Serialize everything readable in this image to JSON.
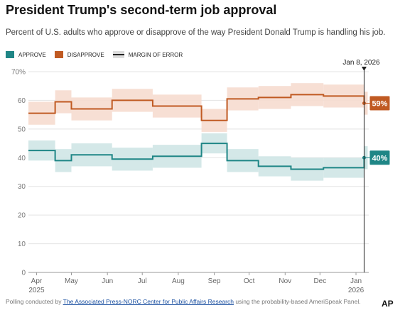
{
  "header": {
    "title": "President Trump's second-term job approval",
    "subtitle": "Percent of U.S. adults who approve or disapprove of the way President Donald Trump is handling his job."
  },
  "legend": {
    "approve": "APPROVE",
    "disapprove": "DISAPPROVE",
    "margin_of_error": "MARGIN OF ERROR"
  },
  "colors": {
    "approve": "#1f8686",
    "approve_band": "#cfe6e5",
    "disapprove": "#c05a22",
    "disapprove_band": "#f6dccf",
    "gridline": "#e3e3e3",
    "marker": "#222222"
  },
  "chart_data": {
    "type": "line",
    "xlabel": "",
    "ylabel": "",
    "ylim": [
      0,
      70
    ],
    "yticks": [
      0,
      10,
      20,
      30,
      40,
      50,
      60,
      70
    ],
    "ytick_labels": [
      "0",
      "10",
      "20",
      "30",
      "40",
      "50",
      "60",
      "70%"
    ],
    "xlim": [
      "2025-03-25",
      "2026-01-12"
    ],
    "xticks": [
      {
        "date": "2025-04-01",
        "label": "Apr",
        "year": "2025"
      },
      {
        "date": "2025-05-01",
        "label": "May",
        "year": ""
      },
      {
        "date": "2025-06-01",
        "label": "Jun",
        "year": ""
      },
      {
        "date": "2025-07-01",
        "label": "Jul",
        "year": ""
      },
      {
        "date": "2025-08-01",
        "label": "Aug",
        "year": ""
      },
      {
        "date": "2025-09-01",
        "label": "Sep",
        "year": ""
      },
      {
        "date": "2025-10-01",
        "label": "Oct",
        "year": ""
      },
      {
        "date": "2025-11-01",
        "label": "Nov",
        "year": ""
      },
      {
        "date": "2025-12-01",
        "label": "Dec",
        "year": ""
      },
      {
        "date": "2026-01-01",
        "label": "Jan",
        "year": "2026"
      }
    ],
    "grid": true,
    "step": true,
    "series": [
      {
        "name": "APPROVE",
        "color": "#1f8686",
        "band_color": "#cfe6e5",
        "points": [
          {
            "x": "2025-03-25",
            "y": 42.5,
            "lo": 39,
            "hi": 46
          },
          {
            "x": "2025-04-17",
            "y": 39,
            "lo": 35,
            "hi": 43
          },
          {
            "x": "2025-05-01",
            "y": 41,
            "lo": 37,
            "hi": 45
          },
          {
            "x": "2025-06-05",
            "y": 39.5,
            "lo": 35.5,
            "hi": 43.5
          },
          {
            "x": "2025-07-10",
            "y": 40.5,
            "lo": 36.5,
            "hi": 44.5
          },
          {
            "x": "2025-08-21",
            "y": 45,
            "lo": 41.5,
            "hi": 48.5
          },
          {
            "x": "2025-09-12",
            "y": 39,
            "lo": 35,
            "hi": 43
          },
          {
            "x": "2025-10-09",
            "y": 37,
            "lo": 33.5,
            "hi": 40.5
          },
          {
            "x": "2025-11-06",
            "y": 36,
            "lo": 32,
            "hi": 40
          },
          {
            "x": "2025-12-04",
            "y": 36.5,
            "lo": 33,
            "hi": 40
          },
          {
            "x": "2026-01-08",
            "y": 40,
            "lo": 36,
            "hi": 44
          }
        ]
      },
      {
        "name": "DISAPPROVE",
        "color": "#c05a22",
        "band_color": "#f6dccf",
        "points": [
          {
            "x": "2025-03-25",
            "y": 55.5,
            "lo": 51.5,
            "hi": 59.5
          },
          {
            "x": "2025-04-17",
            "y": 59.5,
            "lo": 55.5,
            "hi": 63.5
          },
          {
            "x": "2025-05-01",
            "y": 57,
            "lo": 53,
            "hi": 61
          },
          {
            "x": "2025-06-05",
            "y": 60,
            "lo": 56,
            "hi": 64
          },
          {
            "x": "2025-07-10",
            "y": 58,
            "lo": 54,
            "hi": 62
          },
          {
            "x": "2025-08-21",
            "y": 53,
            "lo": 49,
            "hi": 57
          },
          {
            "x": "2025-09-12",
            "y": 60.5,
            "lo": 56.5,
            "hi": 64.5
          },
          {
            "x": "2025-10-09",
            "y": 61,
            "lo": 57,
            "hi": 65
          },
          {
            "x": "2025-11-06",
            "y": 62,
            "lo": 58,
            "hi": 66
          },
          {
            "x": "2025-12-04",
            "y": 61.5,
            "lo": 57.5,
            "hi": 65.5
          },
          {
            "x": "2026-01-08",
            "y": 59,
            "lo": 55,
            "hi": 63
          }
        ]
      }
    ],
    "annotations": {
      "latest_date": "2026-01-08",
      "latest_label": "Jan 8, 2026",
      "approve_label": "40%",
      "disapprove_label": "59%"
    }
  },
  "footer": {
    "prefix": "Polling conducted by ",
    "link_text": "The Associated Press-NORC Center for Public Affairs Research",
    "suffix": " using the probability-based AmeriSpeak Panel.",
    "logo": "AP"
  }
}
